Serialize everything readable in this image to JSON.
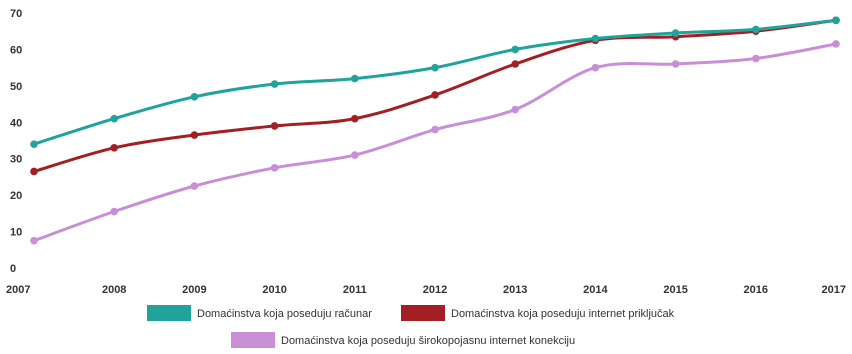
{
  "chart_data": {
    "type": "line",
    "title": "",
    "xlabel": "",
    "ylabel": "",
    "x": [
      "2007",
      "2008",
      "2009",
      "2010",
      "2011",
      "2012",
      "2013",
      "2014",
      "2015",
      "2016",
      "2017"
    ],
    "ylim": [
      0,
      70
    ],
    "yticks": [
      0,
      10,
      20,
      30,
      40,
      50,
      60,
      70
    ],
    "grid": false,
    "legend_position": "bottom",
    "series": [
      {
        "name": "Domaćinstva koja poseduju računar",
        "color": "#1fa39a",
        "values": [
          34,
          41,
          47,
          50.5,
          52,
          55,
          60,
          63,
          64.5,
          65.5,
          68
        ]
      },
      {
        "name": "Domaćinstva koja poseduju internet priključak",
        "color": "#a31f24",
        "values": [
          26.5,
          33,
          36.5,
          39,
          41,
          47.5,
          56,
          62.5,
          63.5,
          65,
          68
        ]
      },
      {
        "name": "Domaćinstva koja poseduju širokopojasnu internet konekciju",
        "color": "#c98fd6",
        "values": [
          7.5,
          15.5,
          22.5,
          27.5,
          31,
          38,
          43.5,
          55,
          56,
          57.5,
          61.5
        ]
      }
    ]
  }
}
